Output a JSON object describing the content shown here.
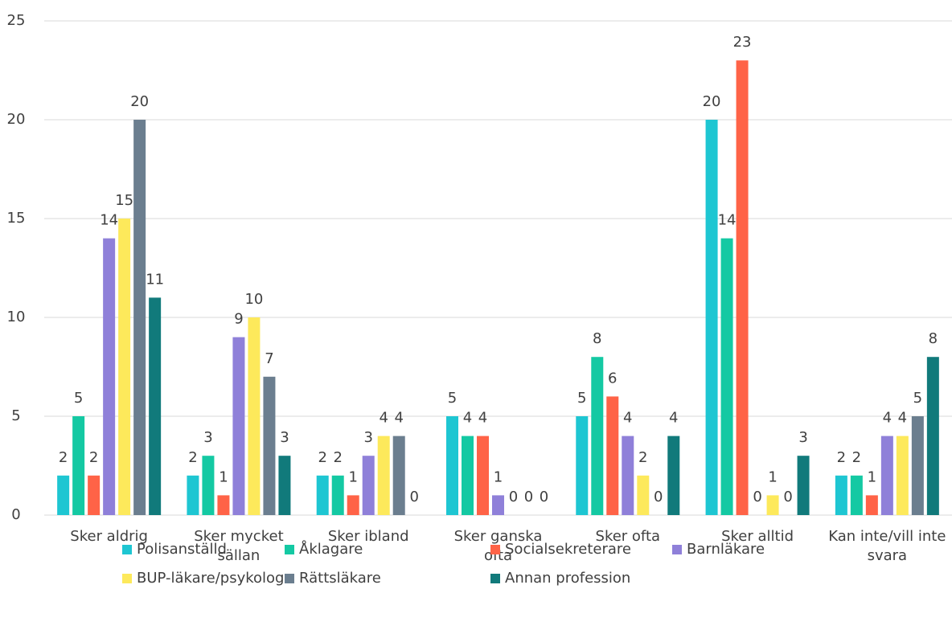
{
  "chart_data": {
    "type": "bar",
    "categories": [
      "Sker aldrig",
      "Sker mycket sällan",
      "Sker ibland",
      "Sker ganska ofta",
      "Sker ofta",
      "Sker alltid",
      "Kan inte/vill inte svara"
    ],
    "series": [
      {
        "name": "Polisanställd",
        "color": "#1ec6d2",
        "values": [
          2,
          2,
          2,
          5,
          5,
          20,
          2
        ]
      },
      {
        "name": "Åklagare",
        "color": "#14c9a3",
        "values": [
          5,
          3,
          2,
          4,
          8,
          14,
          2
        ]
      },
      {
        "name": "Socialsekreterare",
        "color": "#ff6347",
        "values": [
          2,
          1,
          1,
          4,
          6,
          23,
          1
        ]
      },
      {
        "name": "Barnläkare",
        "color": "#8f80d9",
        "values": [
          14,
          9,
          3,
          1,
          4,
          0,
          4
        ]
      },
      {
        "name": "BUP-läkare/psykolog",
        "color": "#fde95b",
        "values": [
          15,
          10,
          4,
          0,
          2,
          1,
          4
        ]
      },
      {
        "name": "Rättsläkare",
        "color": "#6b7e8f",
        "values": [
          20,
          7,
          4,
          0,
          0,
          0,
          5
        ]
      },
      {
        "name": "Annan profession",
        "color": "#117a7b",
        "values": [
          11,
          3,
          0,
          0,
          4,
          3,
          8
        ]
      }
    ],
    "ylim": [
      0,
      25
    ],
    "yticks": [
      0,
      5,
      10,
      15,
      20,
      25
    ],
    "grid": true,
    "legend": "bottom"
  }
}
